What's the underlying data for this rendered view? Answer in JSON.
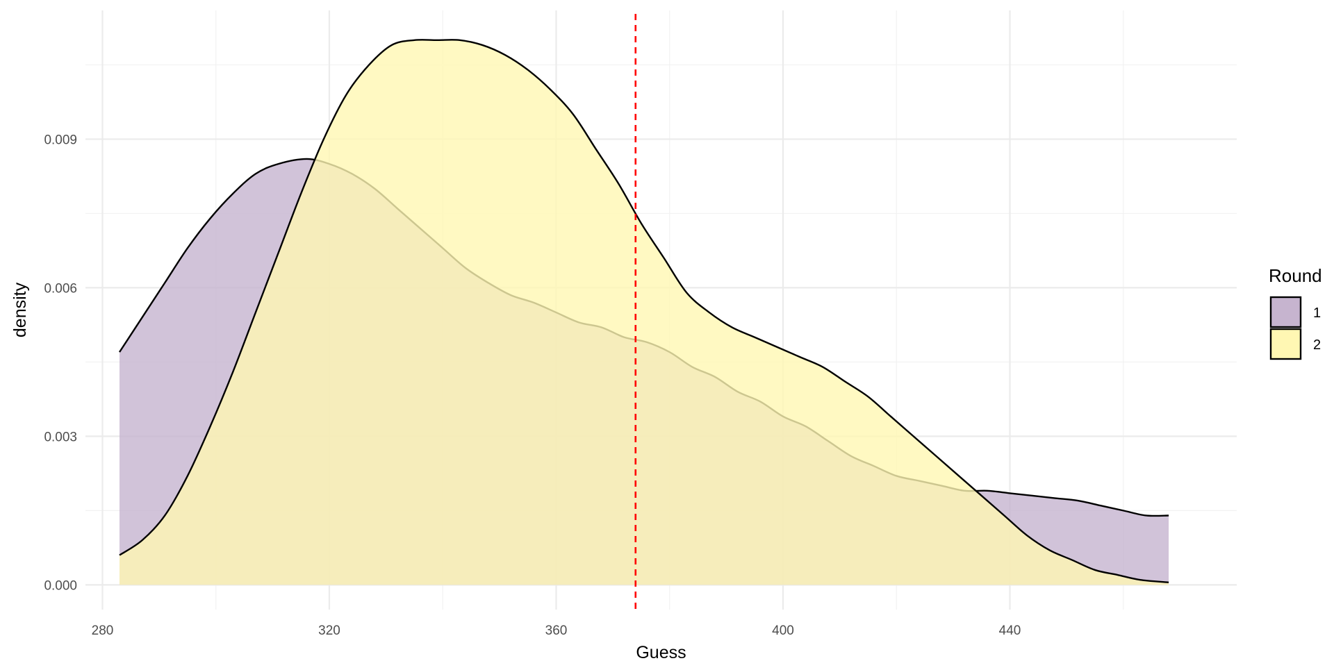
{
  "chart_data": {
    "type": "area",
    "subtype": "density",
    "title": "",
    "xlabel": "Guess",
    "ylabel": "density",
    "xlim": [
      277,
      480
    ],
    "ylim": [
      -0.0005,
      0.0116
    ],
    "x_ticks": [
      280,
      320,
      360,
      400,
      440
    ],
    "x_tick_labels": [
      "280",
      "320",
      "360",
      "400",
      "440"
    ],
    "y_ticks": [
      0,
      0.003,
      0.006,
      0.009
    ],
    "y_tick_labels": [
      "0.000",
      "0.003",
      "0.006",
      "0.009"
    ],
    "grid": true,
    "legend": {
      "title": "Round",
      "position": "right"
    },
    "reference_line": {
      "x": 374,
      "color": "#ff0000",
      "style": "dashed"
    },
    "series": [
      {
        "name": "1",
        "fill": "#c6b4cf",
        "x": [
          283,
          287,
          291,
          295,
          299,
          303,
          307,
          311,
          316,
          320,
          324,
          328,
          332,
          336,
          340,
          344,
          348,
          352,
          356,
          360,
          364,
          368,
          372,
          376,
          380,
          384,
          388,
          392,
          396,
          400,
          404,
          408,
          412,
          416,
          420,
          424,
          428,
          432,
          436,
          440,
          444,
          448,
          452,
          456,
          460,
          464,
          468,
          468
        ],
        "y": [
          0.0047,
          0.0054,
          0.0061,
          0.0068,
          0.0074,
          0.0079,
          0.0083,
          0.0085,
          0.0086,
          0.0085,
          0.0083,
          0.008,
          0.0076,
          0.0072,
          0.0068,
          0.0064,
          0.0061,
          0.00585,
          0.0057,
          0.0055,
          0.0053,
          0.0052,
          0.005,
          0.0049,
          0.0047,
          0.0044,
          0.0042,
          0.0039,
          0.0037,
          0.0034,
          0.0032,
          0.0029,
          0.0026,
          0.0024,
          0.0022,
          0.0021,
          0.002,
          0.0019,
          0.0019,
          0.00185,
          0.0018,
          0.00175,
          0.0017,
          0.0016,
          0.0015,
          0.0014,
          0.0014,
          0.0014
        ]
      },
      {
        "name": "2",
        "fill": "#fff7b3",
        "x": [
          283,
          287,
          291,
          295,
          299,
          303,
          307,
          311,
          315,
          319,
          323,
          327,
          331,
          335,
          339,
          343,
          347,
          351,
          355,
          359,
          363,
          367,
          371,
          375,
          379,
          383,
          387,
          391,
          395,
          399,
          403,
          407,
          411,
          415,
          419,
          423,
          427,
          431,
          435,
          439,
          443,
          447,
          451,
          455,
          459,
          463,
          468
        ],
        "y": [
          0.0006,
          0.0009,
          0.0014,
          0.0022,
          0.0032,
          0.0043,
          0.0055,
          0.0067,
          0.0079,
          0.009,
          0.0099,
          0.0105,
          0.0109,
          0.011,
          0.011,
          0.011,
          0.0109,
          0.0107,
          0.0104,
          0.01,
          0.0095,
          0.0088,
          0.0081,
          0.0073,
          0.0066,
          0.0059,
          0.0055,
          0.0052,
          0.005,
          0.0048,
          0.0046,
          0.0044,
          0.0041,
          0.0038,
          0.0034,
          0.003,
          0.0026,
          0.0022,
          0.0018,
          0.0014,
          0.001,
          0.0007,
          0.0005,
          0.0003,
          0.0002,
          0.0001,
          5e-05
        ]
      }
    ]
  }
}
